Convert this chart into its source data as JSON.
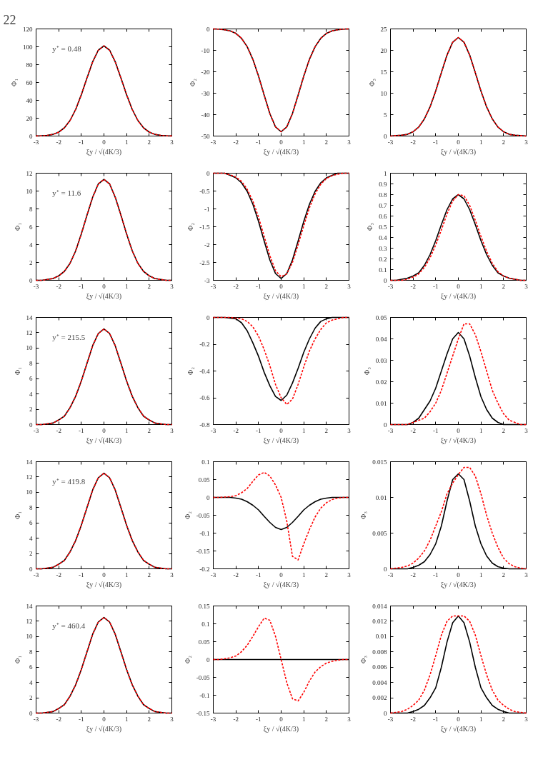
{
  "chart_data": [
    {
      "type": "line",
      "title": "22",
      "ylabel": "Φ₁",
      "xlabel": "ξy / √(4K/3)",
      "annotations": [
        "y⁺ = 0.48"
      ],
      "xlim": [
        -3,
        3
      ],
      "xticks": [
        -3,
        -2,
        -1,
        0,
        1,
        2,
        3
      ],
      "ylim": [
        0,
        120
      ],
      "yticks": [
        0,
        20,
        40,
        60,
        80,
        100,
        120
      ],
      "x": [
        -3,
        -2.75,
        -2.5,
        -2.25,
        -2,
        -1.75,
        -1.5,
        -1.25,
        -1,
        -0.75,
        -0.5,
        -0.25,
        0,
        0.25,
        0.5,
        0.75,
        1,
        1.25,
        1.5,
        1.75,
        2,
        2.25,
        2.5,
        2.75,
        3
      ],
      "series": [
        {
          "color": "#000000",
          "line_style": "solid",
          "values": [
            0.1,
            0.3,
            0.8,
            1.9,
            4.4,
            9.2,
            17.4,
            29.8,
            46.3,
            65,
            83.1,
            96.2,
            101,
            96.2,
            83.1,
            65,
            46.3,
            29.8,
            17.4,
            9.2,
            4.4,
            1.9,
            0.8,
            0.3,
            0.1
          ]
        },
        {
          "color": "#ff0000",
          "line_style": "dashed",
          "values": [
            0.1,
            0.3,
            0.8,
            1.9,
            4.4,
            9.2,
            17.4,
            29.8,
            46.3,
            65,
            83.1,
            96.2,
            101,
            96.2,
            83.1,
            65,
            46.3,
            29.8,
            17.4,
            9.2,
            4.4,
            1.9,
            0.8,
            0.3,
            0.1
          ]
        }
      ]
    },
    {
      "type": "line",
      "ylabel": "Φ₂",
      "xlabel": "ξy / √(4K/3)",
      "xlim": [
        -3,
        3
      ],
      "xticks": [
        -3,
        -2,
        -1,
        0,
        1,
        2,
        3
      ],
      "ylim": [
        -50,
        0
      ],
      "yticks": [
        -50,
        -40,
        -30,
        -20,
        -10,
        0
      ],
      "x": [
        -3,
        -2.75,
        -2.5,
        -2.25,
        -2,
        -1.75,
        -1.5,
        -1.25,
        -1,
        -0.75,
        -0.5,
        -0.25,
        0,
        0.25,
        0.5,
        0.75,
        1,
        1.25,
        1.5,
        1.75,
        2,
        2.25,
        2.5,
        2.75,
        3
      ],
      "series": [
        {
          "color": "#000000",
          "line_style": "solid",
          "values": [
            0,
            -0.1,
            -0.4,
            -0.9,
            -2.1,
            -4.4,
            -8.3,
            -14.2,
            -22,
            -30.9,
            -39.5,
            -45.7,
            -48,
            -45.7,
            -39.5,
            -30.9,
            -22,
            -14.2,
            -8.3,
            -4.4,
            -2.1,
            -0.9,
            -0.4,
            -0.1,
            0
          ]
        },
        {
          "color": "#ff0000",
          "line_style": "dashed",
          "values": [
            0,
            -0.1,
            -0.4,
            -0.9,
            -2.1,
            -4.4,
            -8.3,
            -14.2,
            -22,
            -30.9,
            -39.5,
            -45.7,
            -48,
            -45.7,
            -39.5,
            -30.9,
            -22,
            -14.2,
            -8.3,
            -4.4,
            -2.1,
            -0.9,
            -0.4,
            -0.1,
            0
          ]
        }
      ]
    },
    {
      "type": "line",
      "ylabel": "Φ₃",
      "xlabel": "ξy / √(4K/3)",
      "xlim": [
        -3,
        3
      ],
      "xticks": [
        -3,
        -2,
        -1,
        0,
        1,
        2,
        3
      ],
      "ylim": [
        0,
        25
      ],
      "yticks": [
        0,
        5,
        10,
        15,
        20,
        25
      ],
      "x": [
        -3,
        -2.75,
        -2.5,
        -2.25,
        -2,
        -1.75,
        -1.5,
        -1.25,
        -1,
        -0.75,
        -0.5,
        -0.25,
        0,
        0.25,
        0.5,
        0.75,
        1,
        1.25,
        1.5,
        1.75,
        2,
        2.25,
        2.5,
        2.75,
        3
      ],
      "series": [
        {
          "color": "#000000",
          "line_style": "solid",
          "values": [
            0,
            0.1,
            0.2,
            0.4,
            1,
            2.1,
            4,
            6.8,
            10.5,
            14.8,
            18.9,
            21.9,
            23,
            21.9,
            18.9,
            14.8,
            10.5,
            6.8,
            4,
            2.1,
            1,
            0.4,
            0.2,
            0.1,
            0
          ]
        },
        {
          "color": "#ff0000",
          "line_style": "dashed",
          "values": [
            0,
            0.1,
            0.2,
            0.4,
            1,
            2.1,
            4,
            6.8,
            10.5,
            14.8,
            18.9,
            21.9,
            23,
            21.9,
            18.9,
            14.8,
            10.5,
            6.8,
            4,
            2.1,
            1,
            0.4,
            0.2,
            0.1,
            0
          ]
        }
      ]
    },
    {
      "type": "line",
      "ylabel": "Φ₁",
      "xlabel": "ξy / √(4K/3)",
      "annotations": [
        "y⁺ = 11.6"
      ],
      "xlim": [
        -3,
        3
      ],
      "xticks": [
        -3,
        -2,
        -1,
        0,
        1,
        2,
        3
      ],
      "ylim": [
        0,
        12
      ],
      "yticks": [
        0,
        2,
        4,
        6,
        8,
        10,
        12
      ],
      "x": [
        -3,
        -2.75,
        -2.5,
        -2.25,
        -2,
        -1.75,
        -1.5,
        -1.25,
        -1,
        -0.75,
        -0.5,
        -0.25,
        0,
        0.25,
        0.5,
        0.75,
        1,
        1.25,
        1.5,
        1.75,
        2,
        2.25,
        2.5,
        2.75,
        3
      ],
      "series": [
        {
          "color": "#000000",
          "line_style": "solid",
          "values": [
            0,
            0,
            0.1,
            0.2,
            0.5,
            1,
            1.9,
            3.3,
            5.2,
            7.3,
            9.3,
            10.8,
            11.3,
            10.8,
            9.3,
            7.3,
            5.2,
            3.3,
            1.9,
            1,
            0.5,
            0.2,
            0.1,
            0,
            0
          ]
        },
        {
          "color": "#ff0000",
          "line_style": "dashed",
          "values": [
            0,
            0,
            0.1,
            0.2,
            0.5,
            1,
            1.9,
            3.3,
            5.2,
            7.3,
            9.3,
            10.8,
            11.3,
            10.8,
            9.3,
            7.3,
            5.2,
            3.3,
            1.9,
            1,
            0.5,
            0.2,
            0.1,
            0,
            0
          ]
        }
      ]
    },
    {
      "type": "line",
      "ylabel": "Φ₂",
      "xlabel": "ξy / √(4K/3)",
      "xlim": [
        -3,
        3
      ],
      "xticks": [
        -3,
        -2,
        -1,
        0,
        1,
        2,
        3
      ],
      "ylim": [
        -3,
        0
      ],
      "yticks": [
        -3,
        -2.5,
        -2,
        -1.5,
        -1,
        -0.5,
        0
      ],
      "x": [
        -3,
        -2.75,
        -2.5,
        -2.25,
        -2,
        -1.75,
        -1.5,
        -1.25,
        -1,
        -0.75,
        -0.5,
        -0.25,
        0,
        0.25,
        0.5,
        0.75,
        1,
        1.25,
        1.5,
        1.75,
        2,
        2.25,
        2.5,
        2.75,
        3
      ],
      "series": [
        {
          "color": "#000000",
          "line_style": "solid",
          "values": [
            0,
            0,
            0,
            -0.06,
            -0.13,
            -0.27,
            -0.51,
            -0.87,
            -1.35,
            -1.9,
            -2.43,
            -2.81,
            -2.95,
            -2.81,
            -2.43,
            -1.9,
            -1.35,
            -0.87,
            -0.51,
            -0.27,
            -0.13,
            -0.06,
            0,
            0,
            0
          ]
        },
        {
          "color": "#ff0000",
          "line_style": "dashed",
          "values": [
            0,
            0,
            0,
            -0.05,
            -0.11,
            -0.23,
            -0.45,
            -0.78,
            -1.23,
            -1.77,
            -2.31,
            -2.73,
            -2.9,
            -2.82,
            -2.5,
            -2.0,
            -1.47,
            -0.97,
            -0.58,
            -0.31,
            -0.15,
            -0.07,
            -0.03,
            0,
            0
          ]
        }
      ]
    },
    {
      "type": "line",
      "ylabel": "Φ₃",
      "xlabel": "ξy / √(4K/3)",
      "xlim": [
        -3,
        3
      ],
      "xticks": [
        -3,
        -2,
        -1,
        0,
        1,
        2,
        3
      ],
      "ylim": [
        0,
        1
      ],
      "yticks": [
        0,
        0.1,
        0.2,
        0.3,
        0.4,
        0.5,
        0.6,
        0.7,
        0.8,
        0.9,
        1
      ],
      "x": [
        -3,
        -2.75,
        -2.5,
        -2.25,
        -2,
        -1.75,
        -1.5,
        -1.25,
        -1,
        -0.75,
        -0.5,
        -0.25,
        0,
        0.25,
        0.5,
        0.75,
        1,
        1.25,
        1.5,
        1.75,
        2,
        2.25,
        2.5,
        2.75,
        3
      ],
      "series": [
        {
          "color": "#000000",
          "line_style": "solid",
          "values": [
            0,
            0,
            0.01,
            0.02,
            0.04,
            0.07,
            0.14,
            0.24,
            0.37,
            0.52,
            0.66,
            0.76,
            0.8,
            0.76,
            0.66,
            0.52,
            0.37,
            0.24,
            0.14,
            0.07,
            0.04,
            0.02,
            0.01,
            0,
            0
          ]
        },
        {
          "color": "#ff0000",
          "line_style": "dashed",
          "values": [
            0,
            0,
            0,
            0.01,
            0.03,
            0.06,
            0.12,
            0.21,
            0.33,
            0.47,
            0.62,
            0.74,
            0.8,
            0.79,
            0.7,
            0.56,
            0.41,
            0.27,
            0.16,
            0.08,
            0.04,
            0.02,
            0.01,
            0,
            0
          ]
        }
      ]
    },
    {
      "type": "line",
      "ylabel": "Φ₁",
      "xlabel": "ξy / √(4K/3)",
      "annotations": [
        "y⁺ = 215.5"
      ],
      "xlim": [
        -3,
        3
      ],
      "xticks": [
        -3,
        -2,
        -1,
        0,
        1,
        2,
        3
      ],
      "ylim": [
        0,
        14
      ],
      "yticks": [
        0,
        2,
        4,
        6,
        8,
        10,
        12,
        14
      ],
      "x": [
        -3,
        -2.75,
        -2.5,
        -2.25,
        -2,
        -1.75,
        -1.5,
        -1.25,
        -1,
        -0.75,
        -0.5,
        -0.25,
        0,
        0.25,
        0.5,
        0.75,
        1,
        1.25,
        1.5,
        1.75,
        2,
        2.25,
        2.5,
        2.75,
        3
      ],
      "series": [
        {
          "color": "#000000",
          "line_style": "solid",
          "values": [
            0,
            0,
            0.1,
            0.2,
            0.6,
            1.1,
            2.2,
            3.7,
            5.7,
            8,
            10.3,
            11.9,
            12.5,
            11.9,
            10.3,
            8,
            5.7,
            3.7,
            2.2,
            1.1,
            0.6,
            0.2,
            0.1,
            0,
            0
          ]
        },
        {
          "color": "#ff0000",
          "line_style": "dashed",
          "values": [
            0,
            0,
            0.1,
            0.2,
            0.6,
            1.1,
            2.2,
            3.7,
            5.7,
            8,
            10.3,
            11.9,
            12.5,
            11.9,
            10.3,
            8,
            5.7,
            3.7,
            2.2,
            1.1,
            0.6,
            0.2,
            0.1,
            0,
            0
          ]
        }
      ]
    },
    {
      "type": "line",
      "ylabel": "Φ₂",
      "xlabel": "ξy / √(4K/3)",
      "xlim": [
        -3,
        3
      ],
      "xticks": [
        -3,
        -2,
        -1,
        0,
        1,
        2,
        3
      ],
      "ylim": [
        -0.8,
        0
      ],
      "yticks": [
        -0.8,
        -0.6,
        -0.4,
        -0.2,
        0
      ],
      "x": [
        -3,
        -2.75,
        -2.5,
        -2.25,
        -2,
        -1.75,
        -1.5,
        -1.25,
        -1,
        -0.75,
        -0.5,
        -0.25,
        0,
        0.25,
        0.5,
        0.75,
        1,
        1.25,
        1.5,
        1.75,
        2,
        2.25,
        2.5,
        2.75,
        3
      ],
      "series": [
        {
          "color": "#000000",
          "line_style": "solid",
          "values": [
            0,
            0,
            0,
            -0.005,
            -0.01,
            -0.04,
            -0.1,
            -0.19,
            -0.29,
            -0.41,
            -0.51,
            -0.59,
            -0.62,
            -0.58,
            -0.49,
            -0.38,
            -0.26,
            -0.16,
            -0.08,
            -0.03,
            -0.01,
            0,
            0,
            0,
            0
          ]
        },
        {
          "color": "#ff0000",
          "line_style": "dashed",
          "values": [
            0,
            0,
            0,
            0,
            -0.005,
            -0.01,
            -0.03,
            -0.07,
            -0.14,
            -0.24,
            -0.36,
            -0.5,
            -0.6,
            -0.65,
            -0.61,
            -0.5,
            -0.37,
            -0.25,
            -0.16,
            -0.09,
            -0.04,
            -0.02,
            -0.01,
            0,
            0
          ]
        }
      ]
    },
    {
      "type": "line",
      "ylabel": "Φ₃",
      "xlabel": "ξy / √(4K/3)",
      "xlim": [
        -3,
        3
      ],
      "xticks": [
        -3,
        -2,
        -1,
        0,
        1,
        2,
        3
      ],
      "ylim": [
        0,
        0.05
      ],
      "yticks": [
        0,
        0.01,
        0.02,
        0.03,
        0.04,
        0.05
      ],
      "x": [
        -3,
        -2.75,
        -2.5,
        -2.25,
        -2,
        -1.75,
        -1.5,
        -1.25,
        -1,
        -0.75,
        -0.5,
        -0.25,
        0,
        0.25,
        0.5,
        0.75,
        1,
        1.25,
        1.5,
        1.75,
        2,
        2.25,
        2.5,
        2.75,
        3
      ],
      "series": [
        {
          "color": "#000000",
          "line_style": "solid",
          "values": [
            0,
            0,
            0,
            0,
            0.001,
            0.003,
            0.007,
            0.011,
            0.017,
            0.025,
            0.033,
            0.04,
            0.043,
            0.04,
            0.032,
            0.022,
            0.013,
            0.007,
            0.003,
            0.001,
            0,
            0,
            0,
            0,
            0
          ]
        },
        {
          "color": "#ff0000",
          "line_style": "dashed",
          "values": [
            0,
            0,
            0,
            0,
            0.001,
            0.002,
            0.003,
            0.006,
            0.01,
            0.016,
            0.024,
            0.032,
            0.04,
            0.047,
            0.047,
            0.042,
            0.034,
            0.025,
            0.016,
            0.01,
            0.005,
            0.002,
            0.001,
            0,
            0
          ]
        }
      ]
    },
    {
      "type": "line",
      "ylabel": "Φ₁",
      "xlabel": "ξy / √(4K/3)",
      "annotations": [
        "y⁺ = 419.8"
      ],
      "xlim": [
        -3,
        3
      ],
      "xticks": [
        -3,
        -2,
        -1,
        0,
        1,
        2,
        3
      ],
      "ylim": [
        0,
        14
      ],
      "yticks": [
        0,
        2,
        4,
        6,
        8,
        10,
        12,
        14
      ],
      "x": [
        -3,
        -2.75,
        -2.5,
        -2.25,
        -2,
        -1.75,
        -1.5,
        -1.25,
        -1,
        -0.75,
        -0.5,
        -0.25,
        0,
        0.25,
        0.5,
        0.75,
        1,
        1.25,
        1.5,
        1.75,
        2,
        2.25,
        2.5,
        2.75,
        3
      ],
      "series": [
        {
          "color": "#000000",
          "line_style": "solid",
          "values": [
            0,
            0,
            0.1,
            0.2,
            0.6,
            1.1,
            2.2,
            3.7,
            5.7,
            8,
            10.3,
            11.9,
            12.5,
            11.9,
            10.3,
            8,
            5.7,
            3.7,
            2.2,
            1.1,
            0.6,
            0.2,
            0.1,
            0,
            0
          ]
        },
        {
          "color": "#ff0000",
          "line_style": "dashed",
          "values": [
            0,
            0,
            0.1,
            0.2,
            0.6,
            1.1,
            2.2,
            3.7,
            5.7,
            8,
            10.3,
            11.9,
            12.5,
            11.9,
            10.3,
            8,
            5.7,
            3.7,
            2.2,
            1.1,
            0.6,
            0.2,
            0.1,
            0,
            0
          ]
        }
      ]
    },
    {
      "type": "line",
      "ylabel": "Φ₂",
      "xlabel": "ξy / √(4K/3)",
      "xlim": [
        -3,
        3
      ],
      "xticks": [
        -3,
        -2,
        -1,
        0,
        1,
        2,
        3
      ],
      "ylim": [
        -0.2,
        0.1
      ],
      "yticks": [
        -0.2,
        -0.15,
        -0.1,
        -0.05,
        0,
        0.05,
        0.1
      ],
      "x": [
        -3,
        -2.75,
        -2.5,
        -2.25,
        -2,
        -1.75,
        -1.5,
        -1.25,
        -1,
        -0.75,
        -0.5,
        -0.25,
        0,
        0.25,
        0.5,
        0.75,
        1,
        1.25,
        1.5,
        1.75,
        2,
        2.25,
        2.5,
        2.75,
        3
      ],
      "series": [
        {
          "color": "#000000",
          "line_style": "solid",
          "values": [
            0,
            0,
            0,
            0,
            -0.002,
            -0.005,
            -0.012,
            -0.022,
            -0.035,
            -0.053,
            -0.07,
            -0.084,
            -0.09,
            -0.084,
            -0.07,
            -0.053,
            -0.035,
            -0.022,
            -0.012,
            -0.005,
            -0.002,
            0,
            0,
            0,
            0
          ]
        },
        {
          "color": "#ff0000",
          "line_style": "dashed",
          "values": [
            0,
            0,
            0.001,
            0.002,
            0.005,
            0.013,
            0.025,
            0.045,
            0.063,
            0.07,
            0.06,
            0.035,
            0,
            -0.067,
            -0.165,
            -0.175,
            -0.13,
            -0.09,
            -0.055,
            -0.03,
            -0.015,
            -0.006,
            -0.002,
            0,
            0
          ]
        }
      ]
    },
    {
      "type": "line",
      "ylabel": "Φ₃",
      "xlabel": "ξy / √(4K/3)",
      "xlim": [
        -3,
        3
      ],
      "xticks": [
        -3,
        -2,
        -1,
        0,
        1,
        2,
        3
      ],
      "ylim": [
        0,
        0.015
      ],
      "yticks": [
        0,
        0.005,
        0.01,
        0.015
      ],
      "x": [
        -3,
        -2.75,
        -2.5,
        -2.25,
        -2,
        -1.75,
        -1.5,
        -1.25,
        -1,
        -0.75,
        -0.5,
        -0.25,
        0,
        0.25,
        0.5,
        0.75,
        1,
        1.25,
        1.5,
        1.75,
        2,
        2.25,
        2.5,
        2.75,
        3
      ],
      "series": [
        {
          "color": "#000000",
          "line_style": "solid",
          "values": [
            0,
            0,
            0,
            0,
            0.0002,
            0.0005,
            0.001,
            0.002,
            0.0035,
            0.006,
            0.0095,
            0.0125,
            0.0133,
            0.0125,
            0.0095,
            0.006,
            0.0035,
            0.0018,
            0.0008,
            0.0003,
            0.0001,
            0,
            0,
            0,
            0
          ]
        },
        {
          "color": "#ff0000",
          "line_style": "dashed",
          "values": [
            0,
            0.0001,
            0.0002,
            0.0004,
            0.0008,
            0.0015,
            0.0025,
            0.004,
            0.006,
            0.008,
            0.0105,
            0.012,
            0.0132,
            0.0142,
            0.0142,
            0.013,
            0.0105,
            0.0075,
            0.005,
            0.003,
            0.0015,
            0.0007,
            0.0003,
            0.0001,
            0
          ]
        }
      ]
    },
    {
      "type": "line",
      "ylabel": "Φ₁",
      "xlabel": "ξy / √(4K/3)",
      "annotations": [
        "y⁺ = 460.4"
      ],
      "xlim": [
        -3,
        3
      ],
      "xticks": [
        -3,
        -2,
        -1,
        0,
        1,
        2,
        3
      ],
      "ylim": [
        0,
        14
      ],
      "yticks": [
        0,
        2,
        4,
        6,
        8,
        10,
        12,
        14
      ],
      "x": [
        -3,
        -2.75,
        -2.5,
        -2.25,
        -2,
        -1.75,
        -1.5,
        -1.25,
        -1,
        -0.75,
        -0.5,
        -0.25,
        0,
        0.25,
        0.5,
        0.75,
        1,
        1.25,
        1.5,
        1.75,
        2,
        2.25,
        2.5,
        2.75,
        3
      ],
      "series": [
        {
          "color": "#000000",
          "line_style": "solid",
          "values": [
            0,
            0,
            0.1,
            0.2,
            0.6,
            1.1,
            2.2,
            3.7,
            5.7,
            8,
            10.3,
            11.9,
            12.5,
            11.9,
            10.3,
            8,
            5.7,
            3.7,
            2.2,
            1.1,
            0.6,
            0.2,
            0.1,
            0,
            0
          ]
        },
        {
          "color": "#ff0000",
          "line_style": "dashed",
          "values": [
            0,
            0,
            0.1,
            0.2,
            0.6,
            1.1,
            2.2,
            3.7,
            5.7,
            8,
            10.3,
            11.9,
            12.5,
            11.9,
            10.3,
            8,
            5.7,
            3.7,
            2.2,
            1.1,
            0.6,
            0.2,
            0.1,
            0,
            0
          ]
        }
      ]
    },
    {
      "type": "line",
      "ylabel": "Φ₂",
      "xlabel": "ξy / √(4K/3)",
      "xlim": [
        -3,
        3
      ],
      "xticks": [
        -3,
        -2,
        -1,
        0,
        1,
        2,
        3
      ],
      "ylim": [
        -0.15,
        0.15
      ],
      "yticks": [
        -0.15,
        -0.1,
        -0.05,
        0,
        0.05,
        0.1,
        0.15
      ],
      "x": [
        -3,
        -2.75,
        -2.5,
        -2.25,
        -2,
        -1.75,
        -1.5,
        -1.25,
        -1,
        -0.75,
        -0.5,
        -0.25,
        0,
        0.25,
        0.5,
        0.75,
        1,
        1.25,
        1.5,
        1.75,
        2,
        2.25,
        2.5,
        2.75,
        3
      ],
      "series": [
        {
          "color": "#000000",
          "line_style": "solid",
          "values": [
            0,
            0,
            0,
            0,
            0,
            0,
            0,
            0,
            0,
            0,
            0,
            0,
            0,
            0,
            0,
            0,
            0,
            0,
            0,
            0,
            0,
            0,
            0,
            0,
            0
          ]
        },
        {
          "color": "#ff0000",
          "line_style": "dashed",
          "values": [
            0,
            0,
            0.002,
            0.005,
            0.01,
            0.022,
            0.04,
            0.065,
            0.092,
            0.116,
            0.11,
            0.065,
            0,
            -0.065,
            -0.11,
            -0.116,
            -0.092,
            -0.06,
            -0.035,
            -0.02,
            -0.01,
            -0.005,
            -0.002,
            0,
            0
          ]
        }
      ]
    },
    {
      "type": "line",
      "ylabel": "Φ₃",
      "xlabel": "ξy / √(4K/3)",
      "xlim": [
        -3,
        3
      ],
      "xticks": [
        -3,
        -2,
        -1,
        0,
        1,
        2,
        3
      ],
      "ylim": [
        0,
        0.014
      ],
      "yticks": [
        0,
        0.002,
        0.004,
        0.006,
        0.008,
        0.01,
        0.012,
        0.014
      ],
      "x": [
        -3,
        -2.75,
        -2.5,
        -2.25,
        -2,
        -1.75,
        -1.5,
        -1.25,
        -1,
        -0.75,
        -0.5,
        -0.25,
        0,
        0.25,
        0.5,
        0.75,
        1,
        1.25,
        1.5,
        1.75,
        2,
        2.25,
        2.5,
        2.75,
        3
      ],
      "series": [
        {
          "color": "#000000",
          "line_style": "solid",
          "values": [
            0,
            0,
            0,
            0,
            0.0002,
            0.0005,
            0.001,
            0.002,
            0.0033,
            0.006,
            0.0093,
            0.0118,
            0.0127,
            0.0118,
            0.0093,
            0.006,
            0.0033,
            0.002,
            0.001,
            0.0005,
            0.0002,
            0,
            0,
            0,
            0
          ]
        },
        {
          "color": "#ff0000",
          "line_style": "dashed",
          "values": [
            0,
            0.0001,
            0.0002,
            0.0005,
            0.001,
            0.0017,
            0.003,
            0.005,
            0.0075,
            0.0102,
            0.012,
            0.0127,
            0.0127,
            0.0127,
            0.012,
            0.0102,
            0.0075,
            0.005,
            0.003,
            0.0017,
            0.001,
            0.0005,
            0.0002,
            0.0001,
            0
          ]
        }
      ]
    }
  ]
}
